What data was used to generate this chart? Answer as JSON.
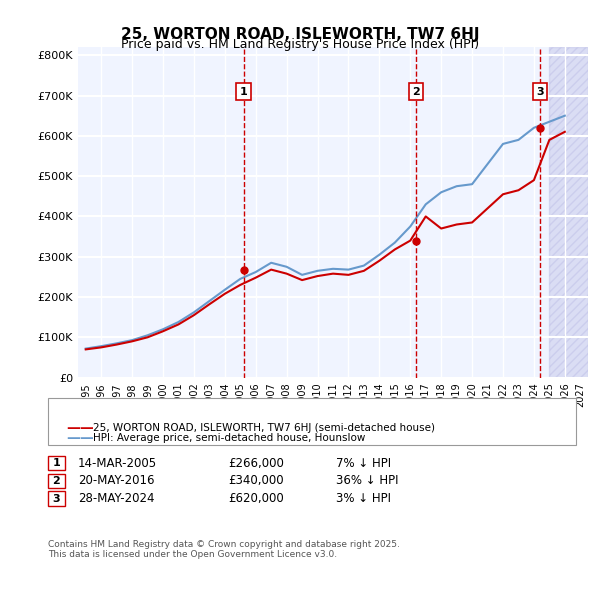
{
  "title": "25, WORTON ROAD, ISLEWORTH, TW7 6HJ",
  "subtitle": "Price paid vs. HM Land Registry's House Price Index (HPI)",
  "ylabel_ticks": [
    "£0",
    "£100K",
    "£200K",
    "£300K",
    "£400K",
    "£500K",
    "£600K",
    "£700K",
    "£800K"
  ],
  "ytick_vals": [
    0,
    100000,
    200000,
    300000,
    400000,
    500000,
    600000,
    700000,
    800000
  ],
  "ylim": [
    0,
    820000
  ],
  "xlim_start": 1995,
  "xlim_end": 2027,
  "legend_label_red": "25, WORTON ROAD, ISLEWORTH, TW7 6HJ (semi-detached house)",
  "legend_label_blue": "HPI: Average price, semi-detached house, Hounslow",
  "transaction_dates": [
    "2005-03-14",
    "2016-05-20",
    "2024-05-28"
  ],
  "transaction_prices": [
    266000,
    340000,
    620000
  ],
  "transaction_labels": [
    "1",
    "2",
    "3"
  ],
  "table_rows": [
    [
      "1",
      "14-MAR-2005",
      "£266,000",
      "7% ↓ HPI"
    ],
    [
      "2",
      "20-MAY-2016",
      "£340,000",
      "36% ↓ HPI"
    ],
    [
      "3",
      "28-MAY-2024",
      "£620,000",
      "3% ↓ HPI"
    ]
  ],
  "footnote": "Contains HM Land Registry data © Crown copyright and database right 2025.\nThis data is licensed under the Open Government Licence v3.0.",
  "bg_color": "#f0f4ff",
  "grid_color": "#ffffff",
  "red_color": "#cc0000",
  "blue_color": "#6699cc",
  "hatch_color": "#ccccff"
}
